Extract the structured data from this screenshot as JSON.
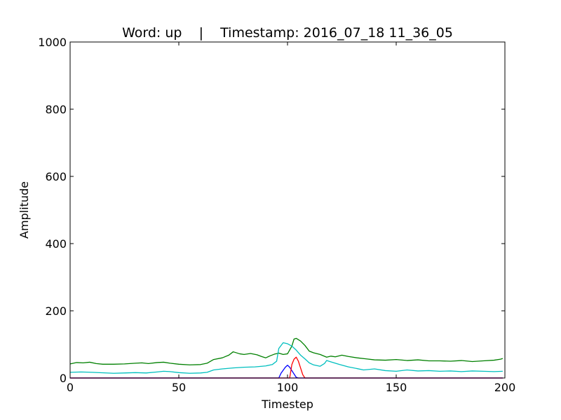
{
  "chart_data": {
    "type": "line",
    "title": "Word: up    |    Timestamp: 2016_07_18 11_36_05",
    "xlabel": "Timestep",
    "ylabel": "Amplitude",
    "xlim": [
      0,
      200
    ],
    "ylim": [
      0,
      1000
    ],
    "xticks": [
      0,
      50,
      100,
      150,
      200
    ],
    "yticks": [
      0,
      200,
      400,
      600,
      800,
      1000
    ],
    "grid": false,
    "legend": "none",
    "series": [
      {
        "color": "#008000",
        "points": [
          [
            0,
            42
          ],
          [
            3,
            46
          ],
          [
            6,
            45
          ],
          [
            9,
            47
          ],
          [
            12,
            43
          ],
          [
            15,
            41
          ],
          [
            20,
            41
          ],
          [
            25,
            42
          ],
          [
            30,
            44
          ],
          [
            33,
            45
          ],
          [
            36,
            43
          ],
          [
            40,
            46
          ],
          [
            43,
            47
          ],
          [
            46,
            44
          ],
          [
            50,
            41
          ],
          [
            55,
            39
          ],
          [
            60,
            40
          ],
          [
            63,
            44
          ],
          [
            66,
            55
          ],
          [
            70,
            60
          ],
          [
            73,
            68
          ],
          [
            75,
            78
          ],
          [
            78,
            72
          ],
          [
            80,
            70
          ],
          [
            83,
            73
          ],
          [
            86,
            69
          ],
          [
            88,
            64
          ],
          [
            90,
            60
          ],
          [
            92,
            66
          ],
          [
            94,
            71
          ],
          [
            96,
            74
          ],
          [
            98,
            70
          ],
          [
            100,
            72
          ],
          [
            102,
            95
          ],
          [
            103,
            116
          ],
          [
            104,
            118
          ],
          [
            106,
            110
          ],
          [
            108,
            97
          ],
          [
            110,
            80
          ],
          [
            112,
            75
          ],
          [
            115,
            70
          ],
          [
            118,
            62
          ],
          [
            120,
            65
          ],
          [
            122,
            63
          ],
          [
            125,
            68
          ],
          [
            128,
            64
          ],
          [
            132,
            60
          ],
          [
            136,
            57
          ],
          [
            140,
            54
          ],
          [
            145,
            53
          ],
          [
            150,
            55
          ],
          [
            155,
            52
          ],
          [
            160,
            54
          ],
          [
            165,
            51
          ],
          [
            170,
            51
          ],
          [
            175,
            50
          ],
          [
            180,
            52
          ],
          [
            185,
            49
          ],
          [
            190,
            51
          ],
          [
            195,
            53
          ],
          [
            198,
            56
          ],
          [
            199,
            58
          ]
        ]
      },
      {
        "color": "#00bfbf",
        "points": [
          [
            0,
            17
          ],
          [
            5,
            18
          ],
          [
            10,
            17
          ],
          [
            20,
            14
          ],
          [
            25,
            15
          ],
          [
            30,
            16
          ],
          [
            35,
            15
          ],
          [
            40,
            18
          ],
          [
            43,
            20
          ],
          [
            46,
            19
          ],
          [
            50,
            16
          ],
          [
            55,
            14
          ],
          [
            60,
            15
          ],
          [
            63,
            17
          ],
          [
            66,
            24
          ],
          [
            70,
            27
          ],
          [
            75,
            30
          ],
          [
            80,
            32
          ],
          [
            85,
            33
          ],
          [
            90,
            36
          ],
          [
            93,
            40
          ],
          [
            95,
            50
          ],
          [
            96,
            88
          ],
          [
            98,
            105
          ],
          [
            100,
            102
          ],
          [
            102,
            95
          ],
          [
            104,
            83
          ],
          [
            106,
            68
          ],
          [
            108,
            57
          ],
          [
            110,
            45
          ],
          [
            112,
            39
          ],
          [
            115,
            35
          ],
          [
            117,
            43
          ],
          [
            118,
            52
          ],
          [
            120,
            48
          ],
          [
            124,
            40
          ],
          [
            128,
            33
          ],
          [
            132,
            28
          ],
          [
            135,
            24
          ],
          [
            140,
            27
          ],
          [
            145,
            22
          ],
          [
            150,
            20
          ],
          [
            155,
            24
          ],
          [
            160,
            21
          ],
          [
            165,
            22
          ],
          [
            170,
            20
          ],
          [
            175,
            21
          ],
          [
            180,
            19
          ],
          [
            185,
            21
          ],
          [
            190,
            20
          ],
          [
            195,
            19
          ],
          [
            199,
            20
          ]
        ]
      },
      {
        "color": "#0000ff",
        "points": [
          [
            0,
            0
          ],
          [
            96,
            0
          ],
          [
            97,
            14
          ],
          [
            99,
            32
          ],
          [
            100,
            38
          ],
          [
            101,
            32
          ],
          [
            102,
            22
          ],
          [
            103,
            12
          ],
          [
            104,
            2
          ],
          [
            105,
            0
          ],
          [
            199,
            0
          ]
        ]
      },
      {
        "color": "#ff0000",
        "points": [
          [
            0,
            0
          ],
          [
            101,
            0
          ],
          [
            102,
            40
          ],
          [
            103,
            56
          ],
          [
            104,
            62
          ],
          [
            105,
            50
          ],
          [
            106,
            30
          ],
          [
            107,
            10
          ],
          [
            108,
            0
          ],
          [
            199,
            0
          ]
        ]
      },
      {
        "color": "#bf00bf",
        "points": [
          [
            0,
            0
          ],
          [
            199,
            0
          ]
        ]
      }
    ]
  }
}
